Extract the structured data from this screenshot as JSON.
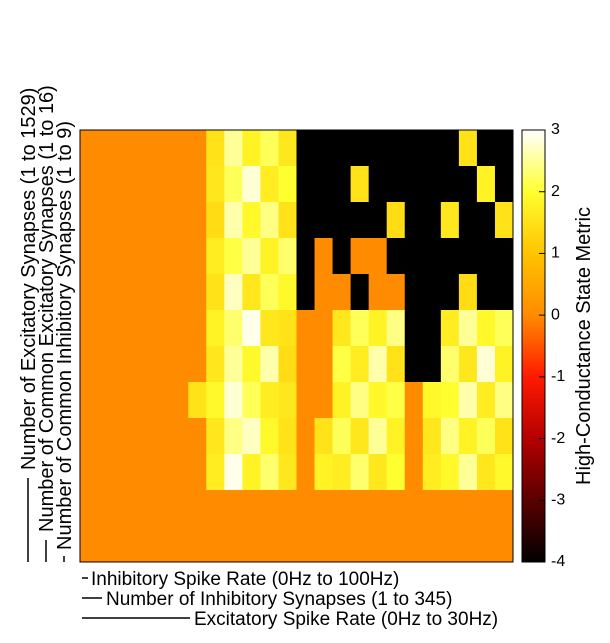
{
  "chart_data": {
    "type": "heatmap",
    "y_labels": [
      "Number of Excitatory Synapses (1 to 1529)",
      "Number of Common Excitatory Synapses (1 to 16)",
      "Number of Common Inhibitory Synapses (1 to 9)"
    ],
    "x_labels": [
      "Inhibitory Spike Rate (0Hz to 100Hz)",
      "Number of Inhibitory Synapses (1 to 345)",
      "Excitatory Spike Rate (0Hz to 30Hz)"
    ],
    "colorbar_label": "High-Conductance State Metric",
    "zlim": [
      -4,
      3
    ],
    "zticks": [
      -4,
      -3,
      -2,
      -1,
      0,
      1,
      2,
      3
    ],
    "colormap": [
      "#000000",
      "#5a0000",
      "#b40000",
      "#ff1a00",
      "#ff8c00",
      "#ffc400",
      "#ffff30",
      "#ffffff"
    ],
    "values": [
      [
        0,
        0,
        0,
        0,
        0,
        0,
        0,
        1.5,
        2.5,
        1.8,
        2.2,
        1.6,
        -4,
        -4,
        -4,
        -4,
        -4,
        -4,
        -4,
        -4,
        -4,
        1.5,
        -4,
        -4
      ],
      [
        0,
        0,
        0,
        0,
        0,
        0,
        0,
        1.6,
        2.2,
        2.8,
        1.7,
        2.0,
        -4,
        -4,
        -4,
        1.5,
        -4,
        -4,
        -4,
        -4,
        -4,
        -4,
        1.8,
        -4
      ],
      [
        0,
        0,
        0,
        0,
        0,
        0,
        0,
        1.4,
        2.6,
        1.9,
        2.4,
        1.5,
        -4,
        -4,
        -4,
        -4,
        -4,
        1.4,
        -4,
        -4,
        1.6,
        -4,
        -4,
        1.5
      ],
      [
        0,
        0,
        0,
        0,
        0,
        0,
        0,
        1.7,
        2.1,
        2.5,
        1.8,
        2.3,
        -4,
        0,
        -4,
        0,
        0,
        -4,
        -4,
        -4,
        -4,
        -4,
        -4,
        -4
      ],
      [
        0,
        0,
        0,
        0,
        0,
        0,
        0,
        1.5,
        2.7,
        1.6,
        2.2,
        1.9,
        -4,
        0,
        0,
        -4,
        0,
        0,
        -4,
        -4,
        -4,
        1.4,
        -4,
        -4
      ],
      [
        0,
        0,
        0,
        0,
        0,
        0,
        0,
        1.8,
        2.3,
        2.9,
        1.6,
        1.5,
        0,
        0,
        1.6,
        2.2,
        1.8,
        2.4,
        -4,
        -4,
        1.7,
        2.5,
        1.9,
        2.2
      ],
      [
        0,
        0,
        0,
        0,
        0,
        0,
        0,
        1.6,
        2.5,
        1.9,
        2.6,
        1.4,
        0,
        0,
        2.1,
        1.7,
        2.6,
        1.5,
        -4,
        -4,
        2.3,
        1.6,
        2.8,
        1.8
      ],
      [
        0,
        0,
        0,
        0,
        0,
        0,
        1.5,
        1.9,
        2.8,
        2.2,
        1.7,
        1.6,
        0,
        0,
        1.8,
        2.4,
        1.9,
        2.1,
        0,
        1.9,
        2.0,
        2.6,
        1.7,
        2.4
      ],
      [
        0,
        0,
        0,
        0,
        0,
        0,
        0,
        1.6,
        2.4,
        2.7,
        1.9,
        1.5,
        0,
        1.5,
        2.2,
        1.6,
        2.5,
        1.8,
        0,
        1.6,
        2.4,
        1.8,
        2.2,
        1.5
      ],
      [
        0,
        0,
        0,
        0,
        0,
        0,
        0,
        1.7,
        2.9,
        1.8,
        2.3,
        1.6,
        0,
        1.8,
        1.7,
        2.3,
        1.6,
        2.0,
        0,
        1.7,
        1.9,
        2.5,
        1.6,
        1.9
      ],
      [
        0,
        0,
        0,
        0,
        0,
        0,
        0,
        0,
        0,
        0,
        0,
        0,
        0,
        0,
        0,
        0,
        0,
        0,
        0,
        0,
        0,
        0,
        0,
        0
      ],
      [
        0,
        0,
        0,
        0,
        0,
        0,
        0,
        0,
        0,
        0,
        0,
        0,
        0,
        0,
        0,
        0,
        0,
        0,
        0,
        0,
        0,
        0,
        0,
        0
      ]
    ]
  }
}
